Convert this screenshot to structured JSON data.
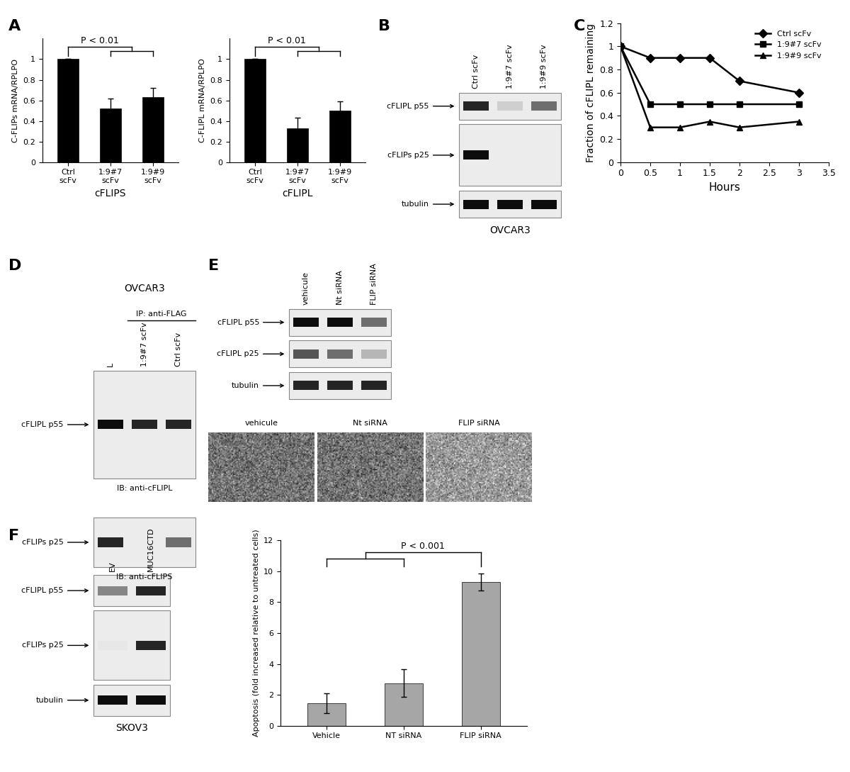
{
  "chart_data": [
    {
      "panel": "A",
      "type": "bar",
      "categories": [
        "Ctrl scFv",
        "1:9#7 scFv",
        "1:9#9 scFv"
      ],
      "values": [
        1,
        0.52,
        0.63
      ],
      "errors": [
        0,
        0.1,
        0.09
      ],
      "color": "#000000",
      "ylabel": "C-FLIPs mRNA/RPLPO",
      "xlabel": "cFLIPS",
      "annotation": "P < 0.01",
      "groups": [
        [
          "Ctrl scFv"
        ],
        [
          "1:9#7 scFv",
          "1:9#9 scFv"
        ]
      ],
      "ylim": [
        0,
        1.2
      ],
      "yticks": [
        0,
        0.2,
        0.4,
        0.6,
        0.8,
        1
      ]
    },
    {
      "type": "bar",
      "categories": [
        "Ctrl scFv",
        "1:9#7 scFv",
        "1:9#9 scFv"
      ],
      "values": [
        1,
        0.33,
        0.5
      ],
      "errors": [
        0,
        0.1,
        0.09
      ],
      "color": "#000000",
      "ylabel": "C-FLIPL mRNA/RPLPO",
      "xlabel": "cFLIPL",
      "annotation": "P < 0.01",
      "groups": [
        [
          "Ctrl scFv"
        ],
        [
          "1:9#7 scFv",
          "1:9#9 scFv"
        ]
      ],
      "ylim": [
        0,
        1.2
      ],
      "yticks": [
        0,
        0.2,
        0.4,
        0.6,
        0.8,
        1
      ]
    },
    {
      "panel": "C",
      "type": "line",
      "x": [
        0,
        0.5,
        1,
        1.5,
        2,
        3
      ],
      "series": [
        {
          "name": "Ctrl scFv",
          "color": "#000000",
          "marker": "diamond",
          "line_style": "solid",
          "values": [
            1,
            0.9,
            0.9,
            0.9,
            0.7,
            0.6
          ]
        },
        {
          "name": "1:9#7 scFv",
          "color": "#000000",
          "marker": "square",
          "line_style": "solid",
          "values": [
            1,
            0.5,
            0.5,
            0.5,
            0.5,
            0.5
          ]
        },
        {
          "name": "1:9#9 scFv",
          "color": "#000000",
          "marker": "triangle",
          "line_style": "solid",
          "values": [
            1,
            0.3,
            0.3,
            0.35,
            0.3,
            0.35
          ]
        }
      ],
      "xlabel": "Hours",
      "ylabel": "Fraction of cFLIPL remaining",
      "xlim": [
        0,
        3.5
      ],
      "xticks": [
        0,
        0.5,
        1,
        1.5,
        2,
        2.5,
        3,
        3.5
      ],
      "ylim": [
        0,
        1.2
      ],
      "yticks": [
        0,
        0.2,
        0.4,
        0.6,
        0.8,
        1,
        1.2
      ],
      "legend": "upper right"
    },
    {
      "type": "bar",
      "categories": [
        "Vehicle",
        "NT siRNA",
        "FLIP siRNA"
      ],
      "values": [
        1.45,
        2.75,
        9.3
      ],
      "errors": [
        0.65,
        0.9,
        0.55
      ],
      "color": "#a6a6a6",
      "ylabel": "Apoptosis (fold increased relative to untreated cells)",
      "annotation": "P < 0.001",
      "groups": [
        [
          "Vehicle",
          "NT siRNA"
        ],
        [
          "FLIP siRNA"
        ]
      ],
      "ylim": [
        0,
        12
      ],
      "yticks": [
        0,
        2,
        4,
        6,
        8,
        10,
        12
      ]
    }
  ],
  "blots": [
    {
      "panel": "B",
      "caption": "OVCAR3",
      "lanes": [
        "Ctrl scFv",
        "1:9#7 scFv",
        "1:9#9 scFv"
      ],
      "rows": [
        {
          "label": "cFLIPL p55",
          "bands": [
            0.9,
            0.2,
            0.6
          ]
        },
        {
          "label": "cFLIPs p25",
          "bands": [
            1,
            0,
            0
          ]
        },
        {
          "label": "tubulin",
          "bands": [
            1,
            1,
            1
          ]
        }
      ]
    },
    {
      "panel": "D",
      "title": "OVCAR3",
      "header": "IP: anti-FLAG",
      "lanes": [
        "L",
        "1:9#7 scFv",
        "Ctrl scFv"
      ],
      "rows": [
        {
          "label": "cFLIPL p55",
          "bands": [
            1,
            0.9,
            0.9
          ],
          "caption": "IB: anti-cFLIPL"
        },
        {
          "label": "cFLIPs p25",
          "bands": [
            0.9,
            0,
            0.6
          ],
          "caption": "IB: anti-cFLIPS"
        }
      ]
    },
    {
      "panel": "E",
      "lanes": [
        "vehicule",
        "Nt siRNA",
        "FLIP siRNA"
      ],
      "rows": [
        {
          "label": "cFLIPL p55",
          "bands": [
            1,
            1,
            0.6
          ]
        },
        {
          "label": "cFLIPL p25",
          "bands": [
            0.7,
            0.6,
            0.3
          ]
        },
        {
          "label": "tubulin",
          "bands": [
            0.9,
            0.9,
            0.9
          ]
        }
      ],
      "images": [
        "vehicule",
        "Nt siRNA",
        "FLIP siRNA"
      ]
    },
    {
      "panel": "F",
      "caption": "SKOV3",
      "lanes": [
        "EV",
        "MUC16CTD"
      ],
      "rows": [
        {
          "label": "cFLIPL p55",
          "bands": [
            0.5,
            0.9
          ]
        },
        {
          "label": "cFLIPs p25",
          "bands": [
            0.1,
            0.9
          ]
        },
        {
          "label": "tubulin",
          "bands": [
            1,
            1
          ]
        }
      ]
    }
  ]
}
